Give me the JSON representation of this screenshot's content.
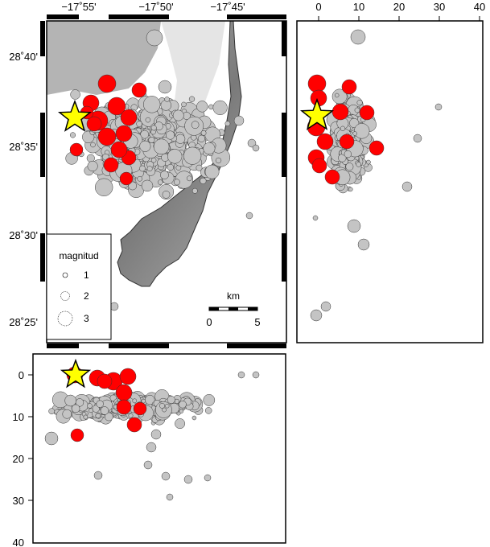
{
  "map": {
    "lon_ticks": [
      "−17˚55'",
      "−17˚50'",
      "−17˚45'"
    ],
    "lat_ticks": [
      "28˚40'",
      "28˚35'",
      "28˚30'",
      "28˚25'"
    ],
    "legend": {
      "title": "magnitud",
      "items": [
        {
          "label": "1",
          "magnitude": 1
        },
        {
          "label": "2",
          "magnitude": 2
        },
        {
          "label": "3",
          "magnitude": 3
        }
      ]
    },
    "scalebar": {
      "title": "km",
      "labels": [
        "0",
        "5"
      ]
    }
  },
  "right_panel": {
    "x_ticks": [
      "0",
      "10",
      "20",
      "30",
      "40"
    ]
  },
  "bottom_panel": {
    "y_ticks": [
      "0",
      "10",
      "20",
      "30",
      "40"
    ]
  },
  "colors": {
    "land": "#8c8c8c",
    "sea": "#ffffff",
    "event_fill": "#c4c4c4",
    "highlight_fill": "#ff0000",
    "star_fill": "#ffff00"
  },
  "icons": {
    "mainshock": "star-icon"
  }
}
